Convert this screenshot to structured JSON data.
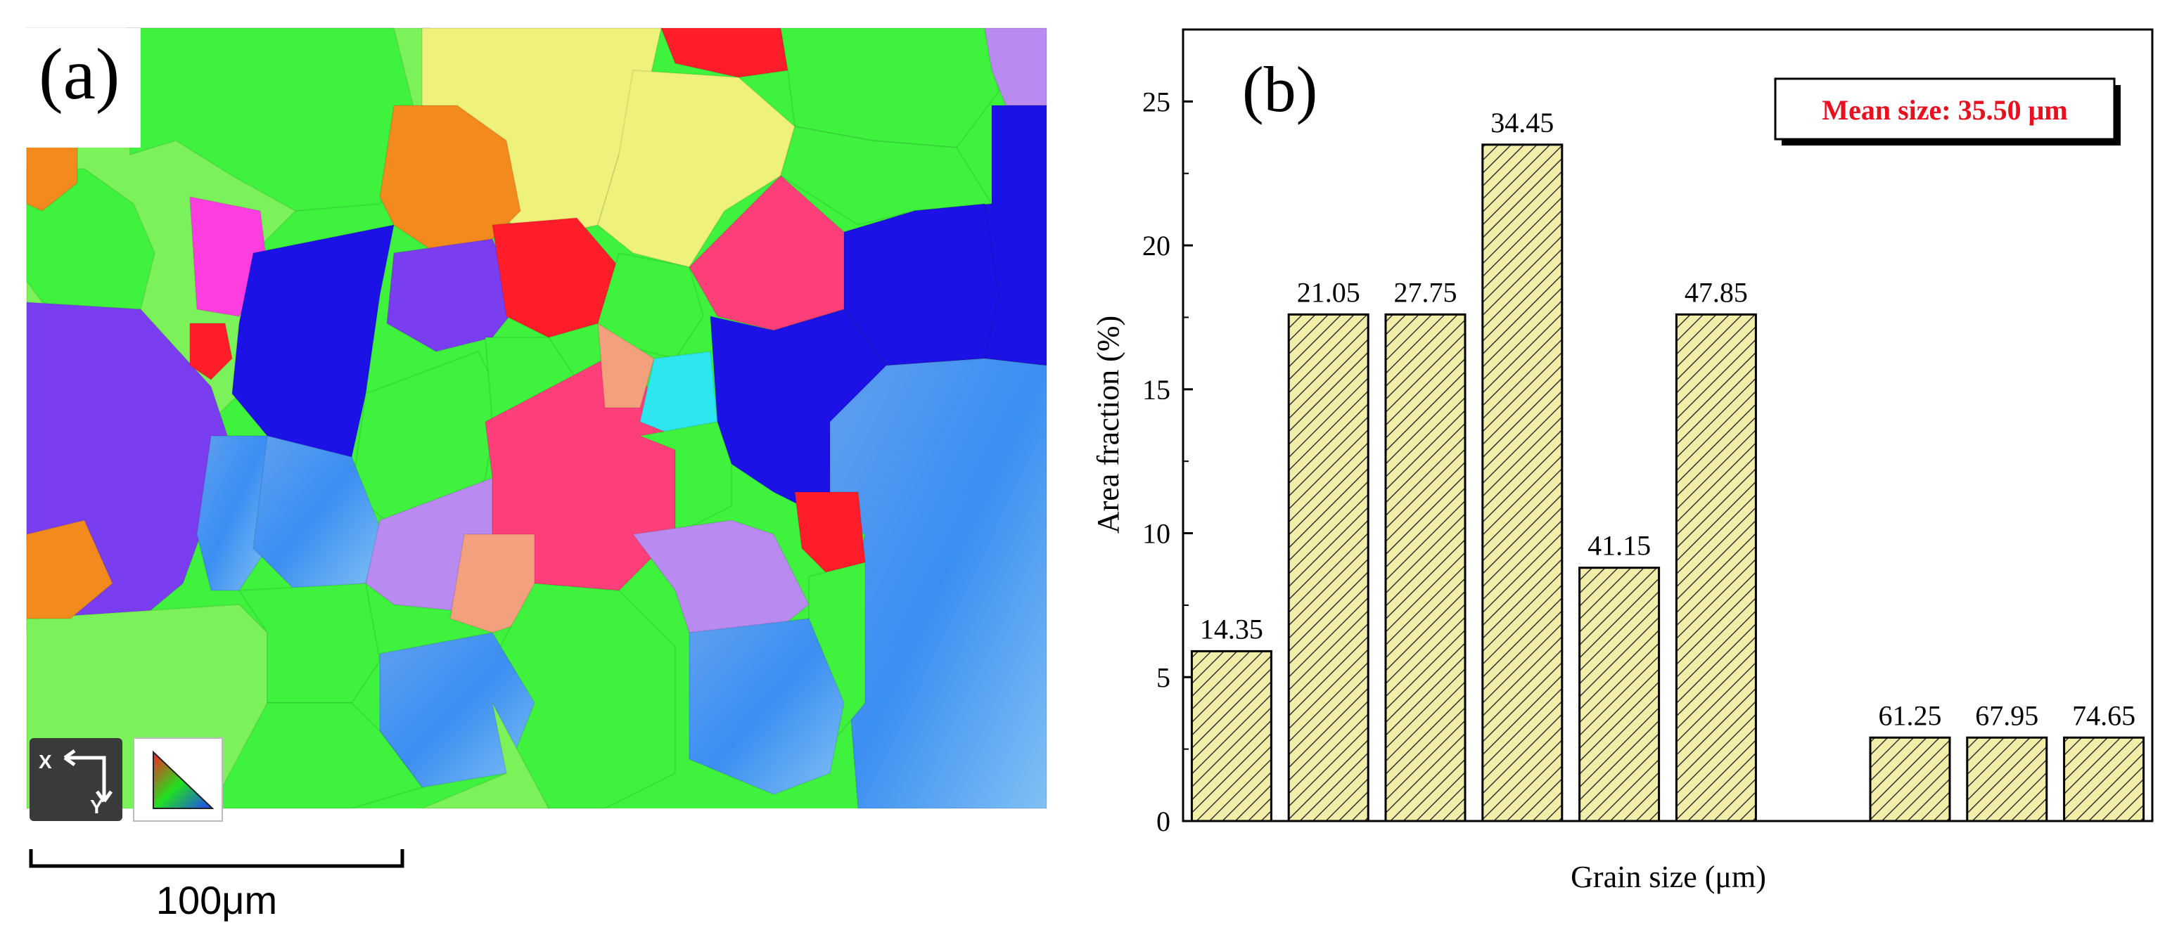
{
  "panel_a": {
    "label": "(a)",
    "scale_bar_label": "100μm",
    "axes_icon": {
      "x_label": "X",
      "y_label": "Y",
      "icon": "sample-axes-icon"
    },
    "ipf_key_icon": "ipf-color-triangle-icon",
    "colors": {
      "green": "#3ef23e",
      "lime": "#7cf25a",
      "yellow": "#eef27a",
      "orange": "#f28a1e",
      "red": "#ff1d2a",
      "pink": "#ff3f7a",
      "magenta": "#ff3ee0",
      "blue": "#1c12e6",
      "violet": "#7a3ef0",
      "lavender": "#b98af0",
      "sky": "#3f86ea",
      "cyan": "#2ee6f0",
      "salmon": "#f2a07e"
    }
  },
  "panel_b": {
    "label": "(b)",
    "legend_text": "Mean size: 35.50 μm",
    "colors": {
      "bar_fill": "#f2eda8",
      "hatch": "#333333",
      "legend_text": "#e8101e",
      "frame": "#000000"
    }
  },
  "chart_data": {
    "type": "bar",
    "title": "",
    "xlabel": "Grain size (μm)",
    "ylabel": "Area fraction (%)",
    "ylim": [
      0,
      27.5
    ],
    "xlim": [
      0,
      10
    ],
    "yticks": [
      0,
      5,
      10,
      15,
      20,
      25
    ],
    "grid": false,
    "legend_position": "top-right",
    "bars": [
      {
        "label": "14.35",
        "slot": 0,
        "value": 5.9
      },
      {
        "label": "21.05",
        "slot": 1,
        "value": 17.6
      },
      {
        "label": "27.75",
        "slot": 2,
        "value": 17.6
      },
      {
        "label": "34.45",
        "slot": 3,
        "value": 23.5
      },
      {
        "label": "41.15",
        "slot": 4,
        "value": 8.8
      },
      {
        "label": "47.85",
        "slot": 5,
        "value": 17.6
      },
      {
        "label": "61.25",
        "slot": 7,
        "value": 2.9
      },
      {
        "label": "67.95",
        "slot": 8,
        "value": 2.9
      },
      {
        "label": "74.65",
        "slot": 9,
        "value": 2.9
      }
    ]
  }
}
